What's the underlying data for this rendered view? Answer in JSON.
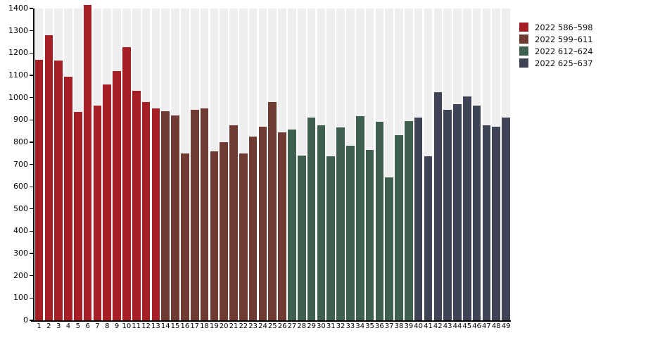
{
  "chart_data": {
    "type": "bar",
    "title": "",
    "categories": [
      "1",
      "2",
      "3",
      "4",
      "5",
      "6",
      "7",
      "8",
      "9",
      "10",
      "11",
      "12",
      "13",
      "14",
      "15",
      "16",
      "17",
      "18",
      "19",
      "20",
      "21",
      "22",
      "23",
      "24",
      "25",
      "26",
      "27",
      "28",
      "29",
      "30",
      "31",
      "32",
      "33",
      "34",
      "35",
      "36",
      "37",
      "38",
      "39",
      "40",
      "41",
      "42",
      "43",
      "44",
      "45",
      "46",
      "47",
      "48",
      "49"
    ],
    "values": [
      1170,
      1280,
      1165,
      1095,
      935,
      1415,
      965,
      1060,
      1120,
      1225,
      1030,
      980,
      950,
      940,
      920,
      750,
      945,
      950,
      760,
      800,
      875,
      750,
      825,
      870,
      980,
      845,
      855,
      740,
      910,
      875,
      735,
      865,
      785,
      915,
      765,
      890,
      640,
      830,
      895,
      910,
      735,
      1025,
      945,
      970,
      1005,
      965,
      875,
      870,
      910
    ],
    "groups": [
      {
        "label": "2022 586–598",
        "color": "#a51f24",
        "from": 1,
        "to": 13
      },
      {
        "label": "2022 599–611",
        "color": "#6e3a32",
        "from": 14,
        "to": 26
      },
      {
        "label": "2022 612–624",
        "color": "#40604f",
        "from": 27,
        "to": 39
      },
      {
        "label": "2022 625–637",
        "color": "#3e4456",
        "from": 40,
        "to": 49
      }
    ],
    "xlabel": "",
    "ylabel": "",
    "ylim": [
      0,
      1400
    ],
    "yticks": [
      0,
      100,
      200,
      300,
      400,
      500,
      600,
      700,
      800,
      900,
      1000,
      1100,
      1200,
      1300,
      1400
    ],
    "grid": "off",
    "plot_background": "per-category light gray stripes",
    "stripe_color": "#eeeeee",
    "axis_color": "#000000",
    "legend_position": "outside-top-right"
  }
}
